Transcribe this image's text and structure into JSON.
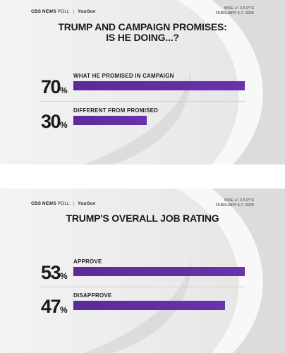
{
  "panels": [
    {
      "header": {
        "brand": "CBS NEWS",
        "poll": "POLL",
        "partner": "YouGov",
        "moe": "MOE +/- 2.5 PTS",
        "date": "FEBRUARY 5-7, 2025"
      },
      "title_line1": "TRUMP AND CAMPAIGN PROMISES:",
      "title_line2": "IS HE DOING...?",
      "rows": [
        {
          "number": "70",
          "sign": "%",
          "label": "WHAT HE PROMISED IN CAMPAIGN"
        },
        {
          "number": "30",
          "sign": "%",
          "label": "DIFFERENT FROM PROMISED"
        }
      ]
    },
    {
      "header": {
        "brand": "CBS NEWS",
        "poll": "POLL",
        "partner": "YouGov",
        "moe": "MOE +/- 2.5 PTS",
        "date": "FEBRUARY 5-7, 2025"
      },
      "title_line1": "TRUMP'S OVERALL JOB RATING",
      "title_line2": "",
      "rows": [
        {
          "number": "53",
          "sign": "%",
          "label": "APPROVE"
        },
        {
          "number": "47",
          "sign": "%",
          "label": "DISAPPROVE"
        }
      ]
    }
  ],
  "colors": {
    "bar": "#6a32ad",
    "background": "#ececec",
    "text": "#1a1a1a"
  },
  "chart_data": [
    {
      "type": "bar",
      "title": "TRUMP AND CAMPAIGN PROMISES: IS HE DOING...?",
      "categories": [
        "WHAT HE PROMISED IN CAMPAIGN",
        "DIFFERENT FROM PROMISED"
      ],
      "values": [
        70,
        30
      ],
      "unit": "%",
      "bar_scale_max": 70
    },
    {
      "type": "bar",
      "title": "TRUMP'S OVERALL JOB RATING",
      "categories": [
        "APPROVE",
        "DISAPPROVE"
      ],
      "values": [
        53,
        47
      ],
      "unit": "%",
      "bar_scale_max": 53
    }
  ]
}
